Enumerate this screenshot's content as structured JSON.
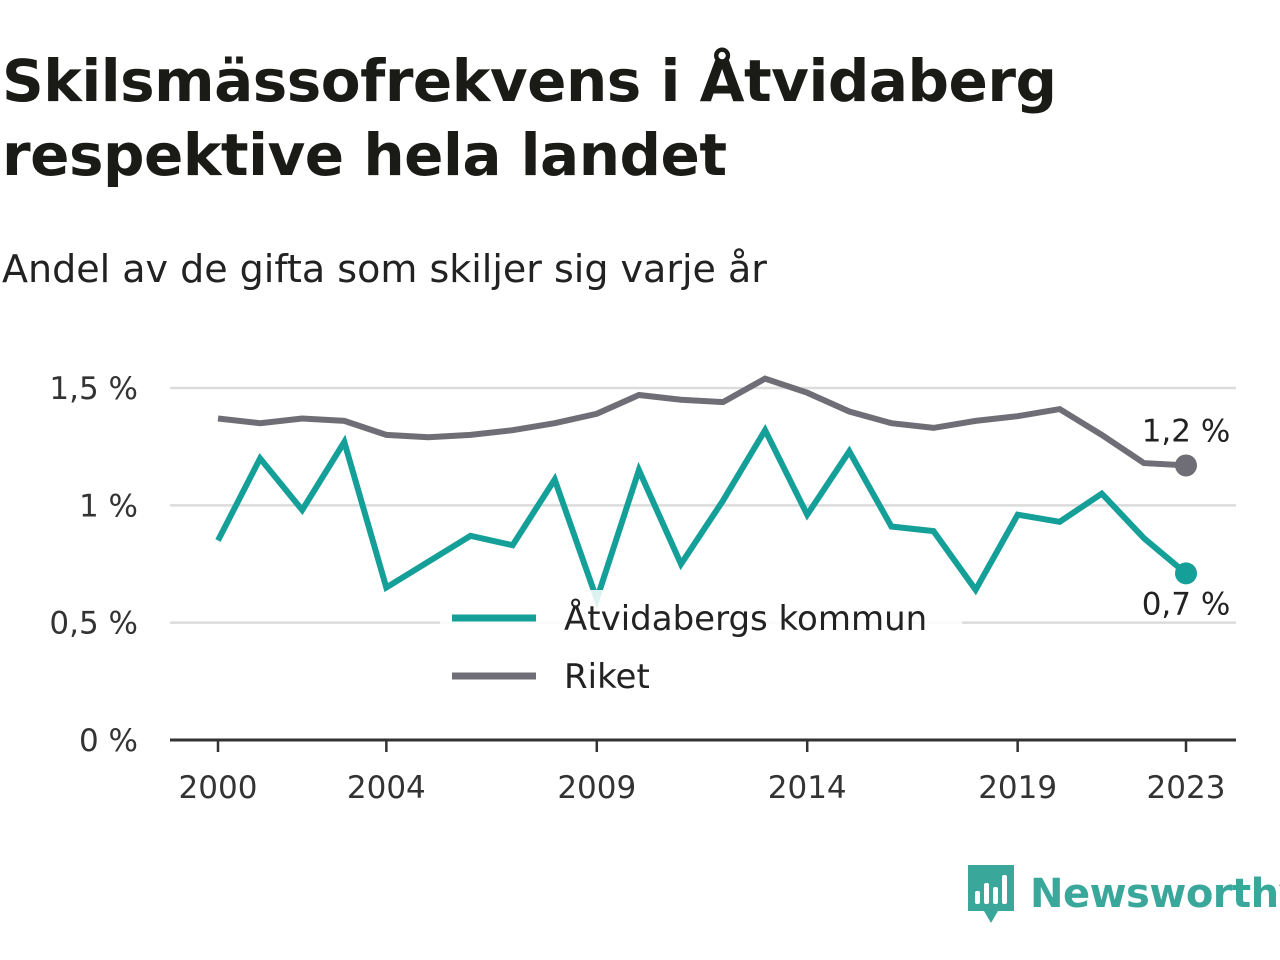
{
  "title": "Skilsmässofrekvens i Åtvidaberg respektive hela landet",
  "subtitle": "Andel av de gifta som skiljer sig varje år",
  "brand": {
    "name": "Newsworthy",
    "icon": "newsworthy-logo-icon",
    "color": "#3aa79b"
  },
  "chart_data": {
    "type": "line",
    "x": [
      2000,
      2001,
      2002,
      2003,
      2004,
      2005,
      2006,
      2007,
      2008,
      2009,
      2010,
      2011,
      2012,
      2013,
      2014,
      2015,
      2016,
      2017,
      2018,
      2019,
      2020,
      2021,
      2022,
      2023
    ],
    "series": [
      {
        "name": "Åtvidabergs kommun",
        "color": "#14a098",
        "values": [
          0.85,
          1.2,
          0.98,
          1.27,
          0.65,
          0.76,
          0.87,
          0.83,
          1.11,
          0.6,
          1.15,
          0.75,
          1.02,
          1.32,
          0.96,
          1.23,
          0.91,
          0.89,
          0.64,
          0.96,
          0.93,
          1.05,
          0.86,
          0.71
        ],
        "end_label": "0,7 %"
      },
      {
        "name": "Riket",
        "color": "#6f6e76",
        "values": [
          1.37,
          1.35,
          1.37,
          1.36,
          1.3,
          1.29,
          1.3,
          1.32,
          1.35,
          1.39,
          1.47,
          1.45,
          1.44,
          1.54,
          1.48,
          1.4,
          1.35,
          1.33,
          1.36,
          1.38,
          1.41,
          1.3,
          1.18,
          1.17
        ],
        "end_label": "1,2 %"
      }
    ],
    "x_ticks": [
      2000,
      2004,
      2009,
      2014,
      2019,
      2023
    ],
    "y_ticks": [
      0,
      0.5,
      1,
      1.5
    ],
    "y_tick_labels": [
      "0 %",
      "0,5 %",
      "1 %",
      "1,5 %"
    ],
    "ylim": [
      0,
      1.5
    ],
    "xlim": [
      2000,
      2023
    ],
    "grid": true,
    "legend": "bottom-center"
  }
}
